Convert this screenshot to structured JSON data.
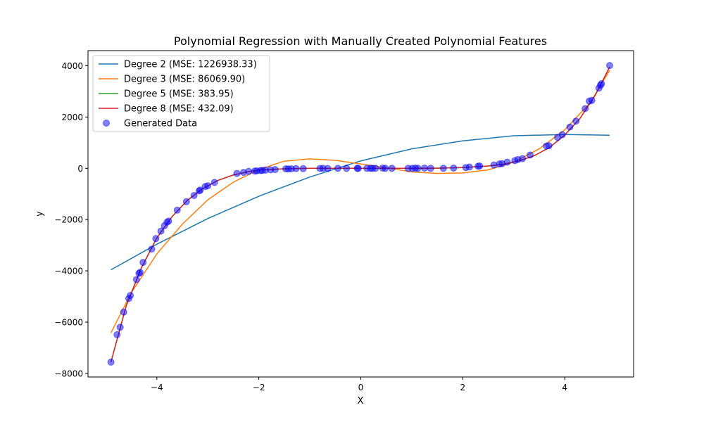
{
  "chart_data": {
    "type": "scatter",
    "title": "Polynomial Regression with Manually Created Polynomial Features",
    "xlabel": "X",
    "ylabel": "y",
    "xlim": [
      -5.35,
      5.35
    ],
    "ylim": [
      -8140,
      4590
    ],
    "x_ticks": [
      -4,
      -2,
      0,
      2,
      4
    ],
    "y_ticks": [
      -8000,
      -6000,
      -4000,
      -2000,
      0,
      2000,
      4000
    ],
    "x_tick_labels": [
      "−4",
      "−2",
      "0",
      "2",
      "4"
    ],
    "y_tick_labels": [
      "−8000",
      "−6000",
      "−4000",
      "−2000",
      "0",
      "2000",
      "4000"
    ],
    "grid": false,
    "legend_position": "top-left",
    "legend": [
      {
        "label": "Degree 2 (MSE: 1226938.33)",
        "kind": "line",
        "color": "#1f77b4"
      },
      {
        "label": "Degree 3 (MSE: 86069.90)",
        "kind": "line",
        "color": "#ff7f0e"
      },
      {
        "label": "Degree 5 (MSE: 383.95)",
        "kind": "line",
        "color": "#2ca02c"
      },
      {
        "label": "Degree 8 (MSE: 432.09)",
        "kind": "line",
        "color": "#d62728"
      },
      {
        "label": "Generated Data",
        "kind": "marker",
        "color": "#0000ff"
      }
    ],
    "series": [
      {
        "name": "Degree 2 (MSE: 1226938.33)",
        "type": "line",
        "color": "#1f77b4",
        "x": [
          -4.9,
          -4,
          -3,
          -2,
          -1,
          0,
          1,
          2,
          3,
          4,
          4.88
        ],
        "y": [
          -3960,
          -2960,
          -1960,
          -1090,
          -340,
          290,
          760,
          1070,
          1270,
          1320,
          1290
        ]
      },
      {
        "name": "Degree 3 (MSE: 86069.90)",
        "type": "line",
        "color": "#ff7f0e",
        "x": [
          -4.9,
          -4.5,
          -4,
          -3.5,
          -3,
          -2.5,
          -2,
          -1.5,
          -1,
          -0.5,
          0,
          0.5,
          1,
          1.5,
          2,
          2.5,
          3,
          3.5,
          4,
          4.5,
          4.88
        ],
        "y": [
          -6420,
          -4850,
          -3340,
          -2180,
          -1230,
          -540,
          -50,
          280,
          370,
          310,
          170,
          20,
          -140,
          -200,
          -180,
          -60,
          240,
          760,
          1500,
          2560,
          3820
        ]
      },
      {
        "name": "Degree 5 (MSE: 383.95)",
        "type": "line",
        "color": "#2ca02c",
        "x": [
          -4.9,
          -4.6,
          -4.3,
          -4,
          -3.7,
          -3.4,
          -3.1,
          -2.8,
          -2.5,
          -2.2,
          -1.9,
          -1.5,
          -1,
          -0.5,
          0,
          0.5,
          1,
          1.5,
          2,
          2.5,
          2.8,
          3.1,
          3.4,
          3.7,
          4,
          4.3,
          4.6,
          4.88
        ],
        "y": [
          -7560,
          -5360,
          -3870,
          -2720,
          -1880,
          -1250,
          -790,
          -470,
          -260,
          -130,
          -55,
          -20,
          0,
          0,
          0,
          0,
          0,
          5,
          30,
          90,
          160,
          290,
          490,
          810,
          1300,
          1950,
          2860,
          3950
        ]
      },
      {
        "name": "Degree 8 (MSE: 432.09)",
        "type": "line",
        "color": "#d62728",
        "x": [
          -4.9,
          -4.6,
          -4.3,
          -4,
          -3.7,
          -3.4,
          -3.1,
          -2.8,
          -2.5,
          -2.2,
          -1.9,
          -1.5,
          -1,
          -0.5,
          0,
          0.5,
          1,
          1.5,
          2,
          2.5,
          2.8,
          3.1,
          3.4,
          3.7,
          4,
          4.3,
          4.6,
          4.88
        ],
        "y": [
          -7560,
          -5360,
          -3870,
          -2720,
          -1880,
          -1250,
          -790,
          -470,
          -260,
          -130,
          -55,
          -20,
          0,
          0,
          0,
          0,
          0,
          5,
          30,
          90,
          160,
          290,
          490,
          810,
          1300,
          1950,
          2860,
          3950
        ]
      },
      {
        "name": "Generated Data",
        "type": "scatter",
        "color": "#0000ff",
        "x": [
          -4.9,
          -4.78,
          -4.72,
          -4.65,
          -4.55,
          -4.52,
          -4.4,
          -4.35,
          -4.33,
          -4.27,
          -4.1,
          -4.02,
          -3.92,
          -3.85,
          -3.8,
          -3.77,
          -3.6,
          -3.42,
          -3.27,
          -3.17,
          -3.15,
          -3.05,
          -3.0,
          -2.87,
          -2.43,
          -2.3,
          -2.2,
          -2.08,
          -2.04,
          -1.97,
          -1.93,
          -1.87,
          -1.77,
          -1.68,
          -1.47,
          -1.42,
          -1.36,
          -1.27,
          -1.13,
          -0.8,
          -0.74,
          -0.65,
          -0.45,
          -0.28,
          -0.07,
          -0.05,
          0.12,
          0.19,
          0.23,
          0.29,
          0.43,
          0.48,
          0.61,
          0.93,
          1.01,
          1.07,
          1.12,
          1.25,
          1.37,
          1.62,
          1.82,
          2.06,
          2.13,
          2.3,
          2.33,
          2.61,
          2.72,
          2.77,
          2.87,
          3.02,
          3.08,
          3.17,
          3.32,
          3.64,
          3.69,
          3.86,
          3.95,
          4.1,
          4.22,
          4.4,
          4.48,
          4.53,
          4.67,
          4.7,
          4.72,
          4.88
        ],
        "y": [
          -7560,
          -6490,
          -6200,
          -5610,
          -5080,
          -4960,
          -4340,
          -4100,
          -4060,
          -3670,
          -3150,
          -2740,
          -2450,
          -2240,
          -2100,
          -2060,
          -1630,
          -1300,
          -1060,
          -880,
          -850,
          -710,
          -680,
          -550,
          -200,
          -160,
          -120,
          -110,
          -100,
          -90,
          -80,
          -70,
          -60,
          -50,
          -20,
          -25,
          -20,
          -10,
          -10,
          -5,
          0,
          -5,
          0,
          0,
          0,
          0,
          0,
          0,
          0,
          0,
          10,
          0,
          0,
          0,
          0,
          10,
          0,
          10,
          0,
          0,
          10,
          30,
          50,
          80,
          90,
          130,
          170,
          180,
          240,
          300,
          340,
          380,
          520,
          870,
          880,
          1210,
          1310,
          1610,
          1840,
          2330,
          2620,
          2650,
          3130,
          3240,
          3300,
          4010
        ]
      }
    ]
  }
}
